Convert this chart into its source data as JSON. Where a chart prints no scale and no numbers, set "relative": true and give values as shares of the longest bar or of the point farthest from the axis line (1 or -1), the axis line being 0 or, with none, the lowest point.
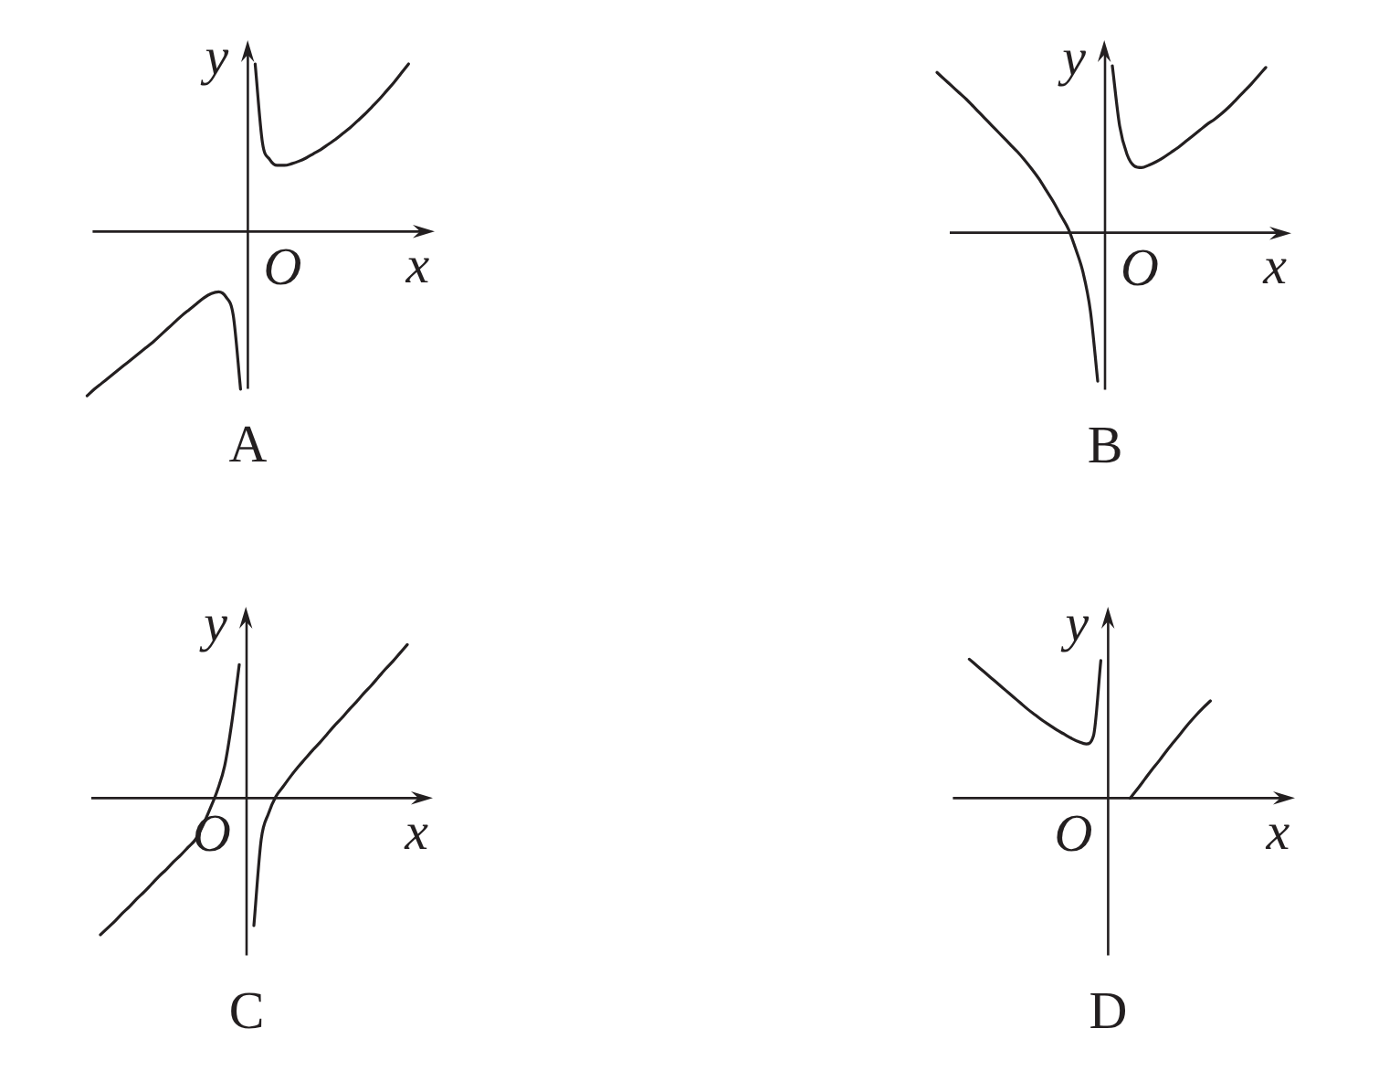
{
  "chart_data": [
    {
      "type": "line",
      "title": "A",
      "xlabel": "x",
      "ylabel": "y",
      "annotations": [
        "O"
      ],
      "relative": true,
      "categories": [
        null,
        null,
        null,
        null,
        null,
        null,
        null,
        null,
        null,
        null,
        null,
        null,
        null,
        null,
        null,
        null,
        null,
        null,
        null,
        null,
        null,
        null,
        null,
        null,
        null,
        null,
        null,
        null,
        null,
        null,
        null,
        null,
        null,
        null,
        null,
        null,
        null,
        null,
        null,
        null,
        null,
        null,
        null,
        null,
        null
      ],
      "series": [
        {
          "color": "#231f20",
          "values": [
            -0.98,
            -0.94,
            -0.905,
            -0.87,
            -0.835,
            -0.8,
            -0.765,
            -0.73,
            -0.695,
            -0.66,
            -0.62,
            -0.58,
            -0.54,
            -0.5,
            -0.465,
            -0.43,
            -0.395,
            -0.37,
            -0.36,
            -0.39,
            -0.5,
            -0.94,
            null,
            null,
            null,
            null,
            null,
            null,
            null,
            null,
            null,
            null,
            null,
            null,
            null,
            null,
            null,
            null,
            null,
            null,
            null,
            null,
            null,
            null,
            null
          ]
        },
        {
          "color": "#231f20",
          "values": [
            null,
            null,
            null,
            null,
            null,
            null,
            null,
            null,
            null,
            null,
            null,
            null,
            null,
            null,
            null,
            null,
            null,
            null,
            null,
            null,
            null,
            null,
            null,
            1,
            0.53,
            0.43,
            0.395,
            0.395,
            0.405,
            0.42,
            0.44,
            0.465,
            0.49,
            0.52,
            0.55,
            0.585,
            0.62,
            0.66,
            0.7,
            0.745,
            0.79,
            0.84,
            0.89,
            0.945,
            1
          ]
        }
      ]
    },
    {
      "type": "line",
      "title": "B",
      "xlabel": "x",
      "ylabel": "y",
      "annotations": [
        "O"
      ],
      "relative": true,
      "categories": [
        null,
        null,
        null,
        null,
        null,
        null,
        null,
        null,
        null,
        null,
        null,
        null,
        null,
        null,
        null,
        null,
        null,
        null,
        null,
        null,
        null,
        null,
        null,
        null,
        null,
        null,
        null,
        null,
        null,
        null,
        null,
        null,
        null,
        null,
        null,
        null,
        null,
        null,
        null,
        null,
        null,
        null,
        null,
        null,
        null,
        null
      ],
      "series": [
        {
          "color": "#231f20",
          "values": [
            0.96,
            0.92,
            0.88,
            0.84,
            0.8,
            0.755,
            0.71,
            0.665,
            0.62,
            0.575,
            0.53,
            0.485,
            0.435,
            0.38,
            0.32,
            0.25,
            0.18,
            0.1,
            0.02,
            -0.1,
            -0.24,
            -0.47,
            -0.89,
            null,
            null,
            null,
            null,
            null,
            null,
            null,
            null,
            null,
            null,
            null,
            null,
            null,
            null,
            null,
            null,
            null,
            null,
            null,
            null,
            null,
            null,
            null
          ]
        },
        {
          "color": "#231f20",
          "values": [
            null,
            null,
            null,
            null,
            null,
            null,
            null,
            null,
            null,
            null,
            null,
            null,
            null,
            null,
            null,
            null,
            null,
            null,
            null,
            null,
            null,
            null,
            null,
            null,
            1,
            0.64,
            0.47,
            0.4,
            0.39,
            0.405,
            0.425,
            0.45,
            0.48,
            0.51,
            0.545,
            0.58,
            0.615,
            0.65,
            0.68,
            0.715,
            0.755,
            0.8,
            0.845,
            0.89,
            0.94,
            0.99
          ]
        }
      ]
    },
    {
      "type": "line",
      "title": "C",
      "xlabel": "x",
      "ylabel": "y",
      "annotations": [
        "O"
      ],
      "relative": true,
      "categories": [
        null,
        null,
        null,
        null,
        null,
        null,
        null,
        null,
        null,
        null,
        null,
        null,
        null,
        null,
        null,
        null,
        null,
        null,
        null,
        null,
        null,
        null,
        null,
        null,
        null,
        null,
        null,
        null,
        null,
        null,
        null,
        null,
        null,
        null,
        null,
        null,
        null,
        null,
        null,
        null,
        null,
        null,
        null
      ],
      "series": [
        {
          "color": "#231f20",
          "values": [
            -0.89,
            -0.845,
            -0.8,
            -0.75,
            -0.705,
            -0.655,
            -0.61,
            -0.56,
            -0.51,
            -0.465,
            -0.415,
            -0.37,
            -0.32,
            -0.27,
            -0.18,
            -0.07,
            0.05,
            0.21,
            0.5,
            0.87,
            null,
            null,
            null,
            null,
            null,
            null,
            null,
            null,
            null,
            null,
            null,
            null,
            null,
            null,
            null,
            null,
            null,
            null,
            null,
            null,
            null,
            null,
            null
          ]
        },
        {
          "color": "#231f20",
          "values": [
            null,
            null,
            null,
            null,
            null,
            null,
            null,
            null,
            null,
            null,
            null,
            null,
            null,
            null,
            null,
            null,
            null,
            null,
            null,
            null,
            null,
            -0.83,
            -0.27,
            -0.1,
            0.01,
            0.075,
            0.14,
            0.2,
            0.255,
            0.31,
            0.36,
            0.415,
            0.47,
            0.52,
            0.575,
            0.625,
            0.68,
            0.73,
            0.785,
            0.84,
            0.89,
            0.945,
            1
          ]
        }
      ]
    },
    {
      "type": "line",
      "title": "D",
      "xlabel": "x",
      "ylabel": "y",
      "annotations": [
        "O"
      ],
      "relative": true,
      "categories": [
        null,
        null,
        null,
        null,
        null,
        null,
        null,
        null,
        null,
        null,
        null,
        null,
        null,
        null,
        null,
        null,
        null,
        null,
        null,
        null,
        null,
        null,
        null,
        null,
        null,
        null,
        null,
        null,
        null,
        null,
        null,
        null,
        null,
        null
      ],
      "series": [
        {
          "color": "#231f20",
          "values": [
            1,
            0.955,
            0.91,
            0.865,
            0.82,
            0.775,
            0.73,
            0.685,
            0.64,
            0.6,
            0.56,
            0.525,
            0.49,
            0.46,
            0.43,
            0.405,
            0.39,
            0.45,
            0.99,
            null,
            null,
            null,
            null,
            null,
            null,
            null,
            null,
            null,
            null,
            null,
            null,
            null,
            null,
            null
          ]
        },
        {
          "color": "#231f20",
          "values": [
            null,
            null,
            null,
            null,
            null,
            null,
            null,
            null,
            null,
            null,
            null,
            null,
            null,
            null,
            null,
            null,
            null,
            null,
            null,
            null,
            null,
            null,
            0,
            0.065,
            0.135,
            0.205,
            0.27,
            0.34,
            0.405,
            0.47,
            0.535,
            0.595,
            0.65,
            0.7
          ]
        }
      ]
    }
  ]
}
